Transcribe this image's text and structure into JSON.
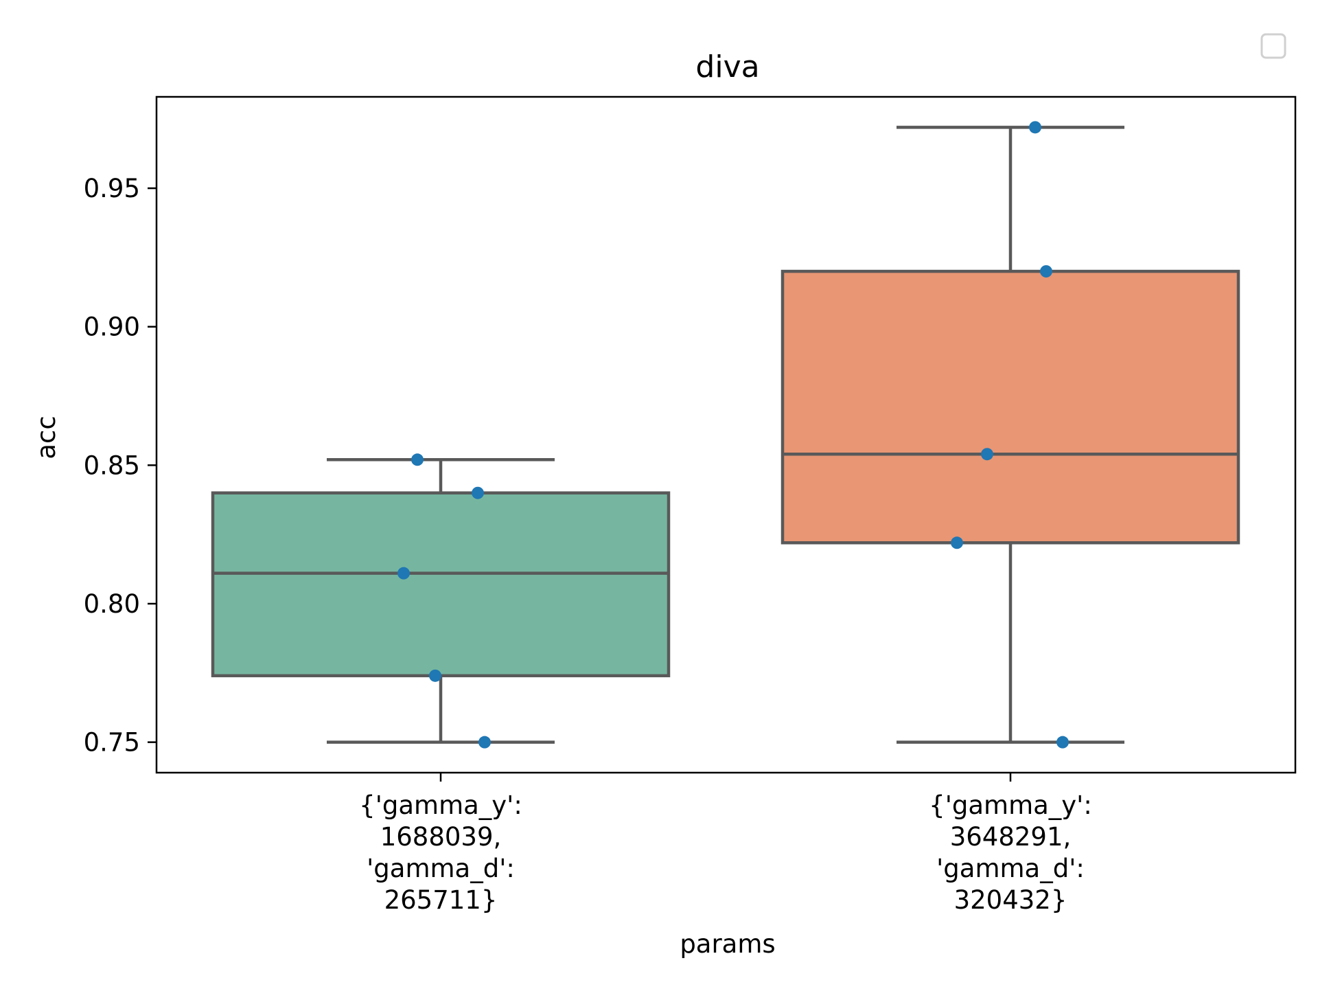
{
  "chart_data": {
    "type": "box",
    "title": "diva",
    "xlabel": "params",
    "ylabel": "acc",
    "ylim": [
      0.739,
      0.983
    ],
    "yticks": [
      "0.75",
      "0.80",
      "0.85",
      "0.90",
      "0.95"
    ],
    "categories": [
      [
        "{'gamma_y':",
        "1688039,",
        "'gamma_d':",
        "265711}"
      ],
      [
        "{'gamma_y':",
        "3648291,",
        "'gamma_d':",
        "320432}"
      ]
    ],
    "boxes": [
      {
        "min": 0.75,
        "q1": 0.774,
        "median": 0.811,
        "q3": 0.84,
        "max": 0.852,
        "color": "#76b6a0"
      },
      {
        "min": 0.75,
        "q1": 0.822,
        "median": 0.854,
        "q3": 0.92,
        "max": 0.972,
        "color": "#e89674"
      }
    ],
    "points": [
      {
        "category": 0,
        "values": [
          0.852,
          0.84,
          0.811,
          0.774,
          0.75
        ]
      },
      {
        "category": 1,
        "values": [
          0.972,
          0.92,
          0.854,
          0.822,
          0.75
        ]
      }
    ],
    "point_color": "#1f77b4",
    "box_edge_color": "#595959",
    "legend": {
      "placement": "top-right",
      "entries": []
    },
    "grid": false
  }
}
